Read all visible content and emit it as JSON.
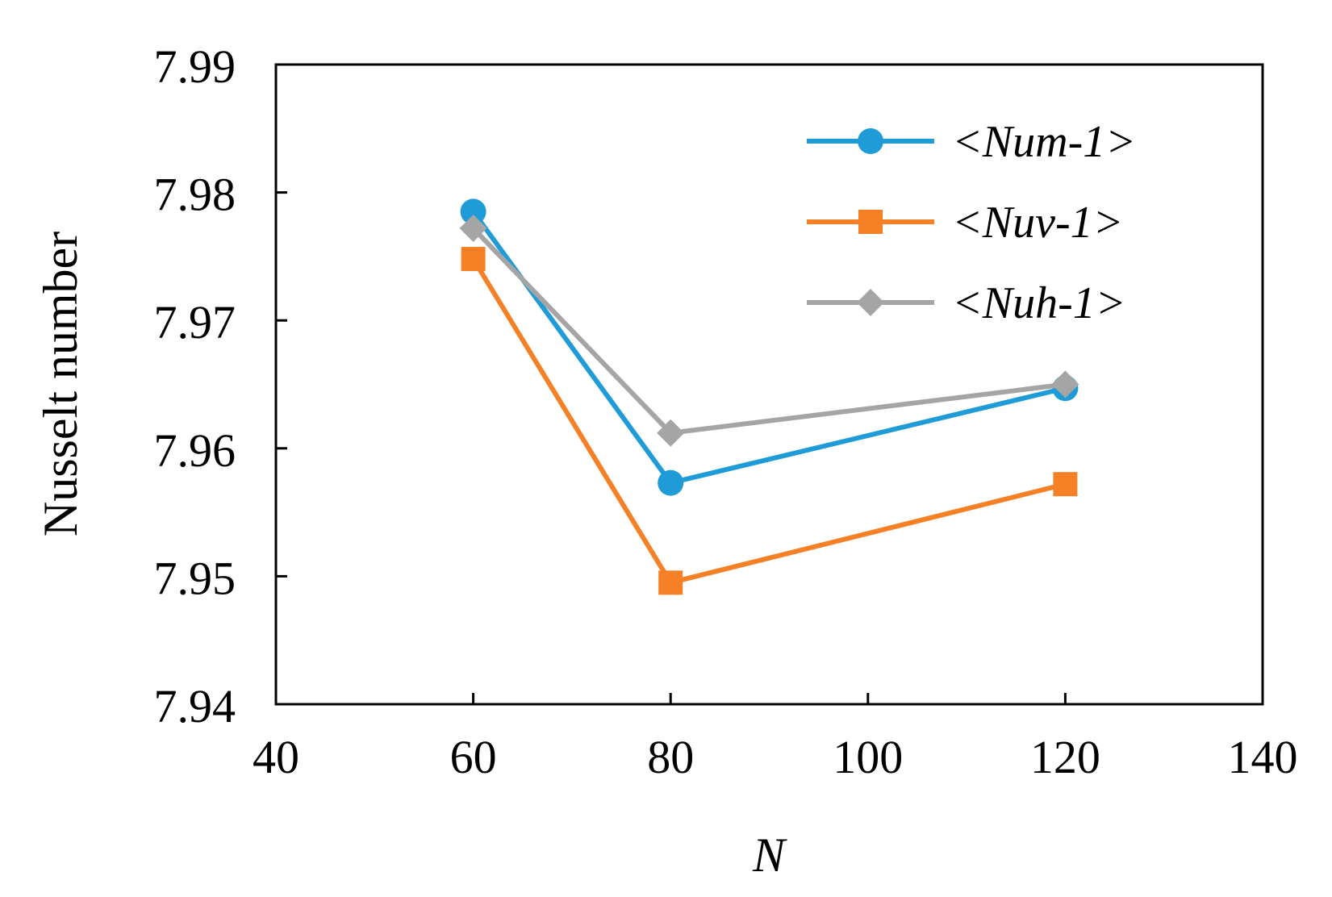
{
  "chart_data": {
    "type": "line",
    "title": "",
    "xlabel": "N",
    "ylabel": "Nusselt number",
    "xlim": [
      40,
      140
    ],
    "ylim": [
      7.94,
      7.99
    ],
    "xticks": [
      40,
      60,
      80,
      100,
      120,
      140
    ],
    "yticks": [
      7.94,
      7.95,
      7.96,
      7.97,
      7.98,
      7.99
    ],
    "xtick_labels": [
      "40",
      "60",
      "80",
      "100",
      "120",
      "140"
    ],
    "ytick_labels": [
      "7.94",
      "7.95",
      "7.96",
      "7.97",
      "7.98",
      "7.99"
    ],
    "legend_position": "top-right",
    "grid": false,
    "x": [
      60,
      80,
      120
    ],
    "series": [
      {
        "name": "<Num-1>",
        "marker": "circle",
        "color": "#1f9bd7",
        "values": [
          7.9785,
          7.9573,
          7.9647
        ]
      },
      {
        "name": "<Nuv-1>",
        "marker": "square",
        "color": "#f58025",
        "values": [
          7.9748,
          7.9495,
          7.9572
        ]
      },
      {
        "name": "<Nuh-1>",
        "marker": "diamond",
        "color": "#a5a5a5",
        "values": [
          7.9772,
          7.9612,
          7.965
        ]
      }
    ]
  }
}
